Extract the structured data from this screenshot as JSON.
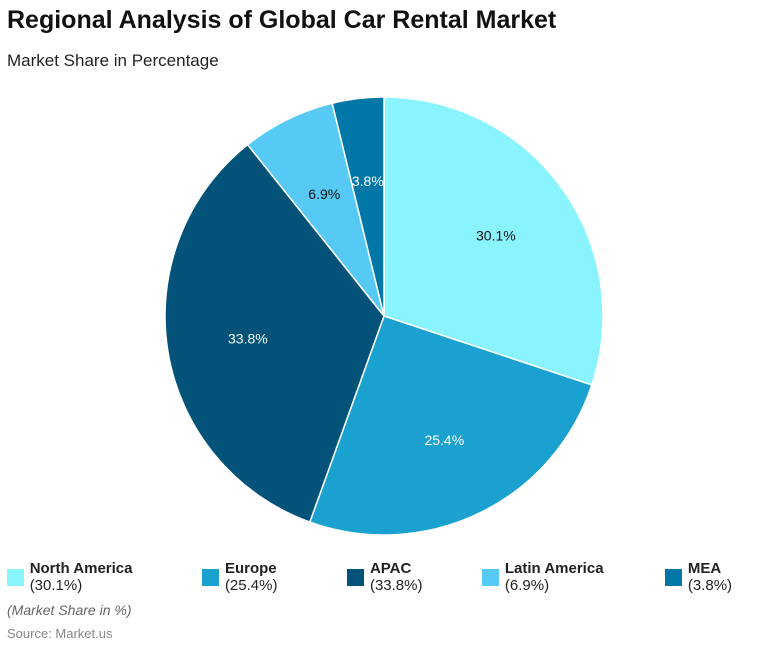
{
  "chart_data": {
    "type": "pie",
    "title": "Regional Analysis of Global Car Rental Market",
    "subtitle": "Market Share in Percentage",
    "categories": [
      "North America",
      "Europe",
      "APAC",
      "Latin America",
      "MEA"
    ],
    "values": [
      30.1,
      25.4,
      33.8,
      6.9,
      3.8
    ],
    "labels": [
      "30.1%",
      "25.4%",
      "33.8%",
      "6.9%",
      "3.8%"
    ],
    "legend_values": [
      "(30.1%)",
      "(25.4%)",
      "(33.8%)",
      "(6.9%)",
      "(3.8%)"
    ],
    "colors": [
      "#8af4fe",
      "#1ba1cf",
      "#02527a",
      "#56c9f5",
      "#0077a6"
    ],
    "label_colors": [
      "#111111",
      "#ffffff",
      "#ffffff",
      "#111111",
      "#ffffff"
    ],
    "legend_placement": "bottom",
    "note": "(Market Share in %)",
    "source": "Source: Market.us"
  }
}
